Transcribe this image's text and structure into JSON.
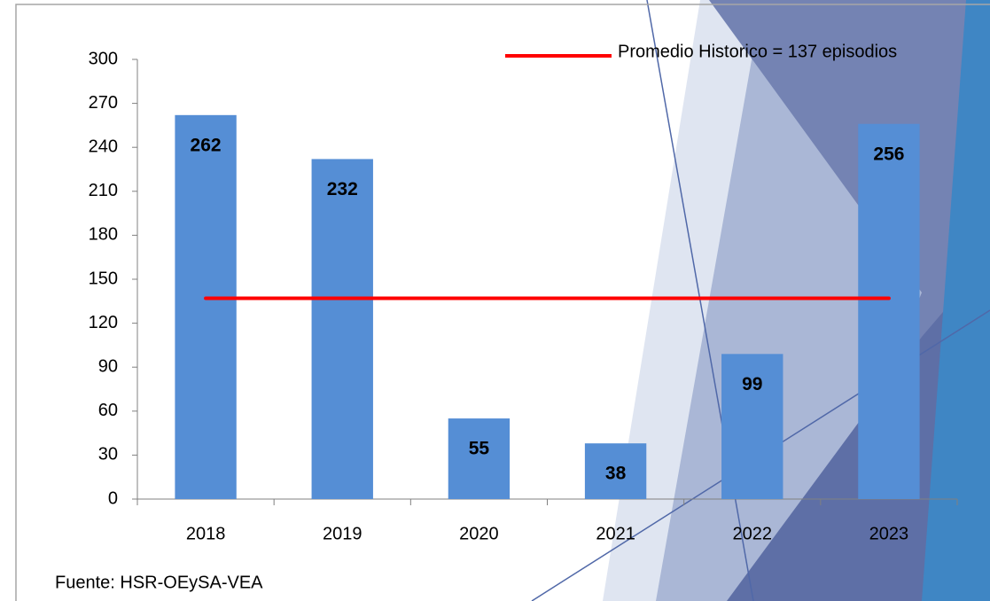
{
  "chart_data": {
    "type": "bar",
    "categories": [
      "2018",
      "2019",
      "2020",
      "2021",
      "2022",
      "2023"
    ],
    "values": [
      262,
      232,
      55,
      38,
      99,
      256
    ],
    "color": "#558ed5",
    "line_series": {
      "name": "Promedio Historico = 137 episodios",
      "color": "#ff0000",
      "values": [
        137,
        137,
        137,
        137,
        137,
        137
      ]
    },
    "ylim": [
      0,
      300
    ],
    "yticks": [
      0,
      30,
      60,
      90,
      120,
      150,
      180,
      210,
      240,
      270,
      300
    ],
    "source": "Fuente: HSR-OEySA-VEA"
  }
}
